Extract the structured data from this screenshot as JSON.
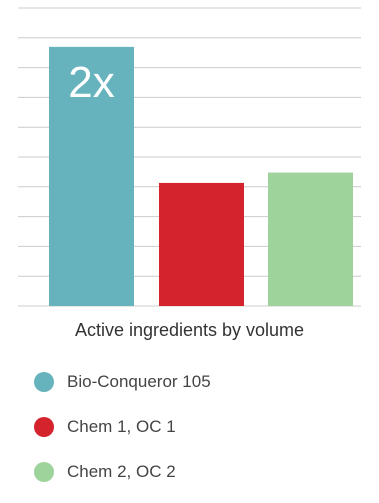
{
  "chart_data": {
    "type": "bar",
    "title": "",
    "xlabel": "Active ingredients by volume",
    "ylabel": "",
    "categories": [
      "Bio-Conqueror 105",
      "Chem 1, OC 1",
      "Chem 2, OC 2"
    ],
    "values": [
      2.0,
      0.95,
      1.03
    ],
    "ylim": [
      0,
      2.3
    ],
    "grid": true,
    "colors": [
      "#66b3bd",
      "#d4232d",
      "#9ed39b"
    ],
    "annotations": [
      {
        "category": "Bio-Conqueror 105",
        "text": "2x"
      }
    ]
  },
  "legend": {
    "placement": "bottom-left",
    "items": [
      {
        "label": "Bio-Conqueror 105",
        "color": "#66b3bd"
      },
      {
        "label": "Chem 1, OC 1",
        "color": "#d4232d"
      },
      {
        "label": "Chem 2, OC 2",
        "color": "#9ed39b"
      }
    ]
  }
}
